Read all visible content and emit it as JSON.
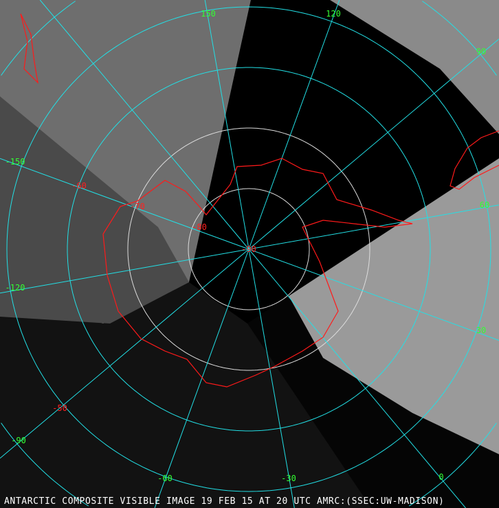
{
  "caption": "ANTARCTIC COMPOSITE VISIBLE IMAGE 19 FEB 15 AT 20 UTC AMRC:(SSEC:UW-MADISON)",
  "colors": {
    "grid": "#22e0e6",
    "coastline": "#ff1a1a",
    "longitude_labels": "#33ff33",
    "latitude_labels": "#ff2020",
    "caption": "#ffffff"
  },
  "longitude_labels": [
    "150",
    "120",
    "90",
    "60",
    "30",
    "0",
    "-30",
    "-60",
    "-90",
    "-120",
    "-150"
  ],
  "latitude_labels": [
    "-90",
    "-80",
    "-70",
    "-60",
    "-50"
  ]
}
